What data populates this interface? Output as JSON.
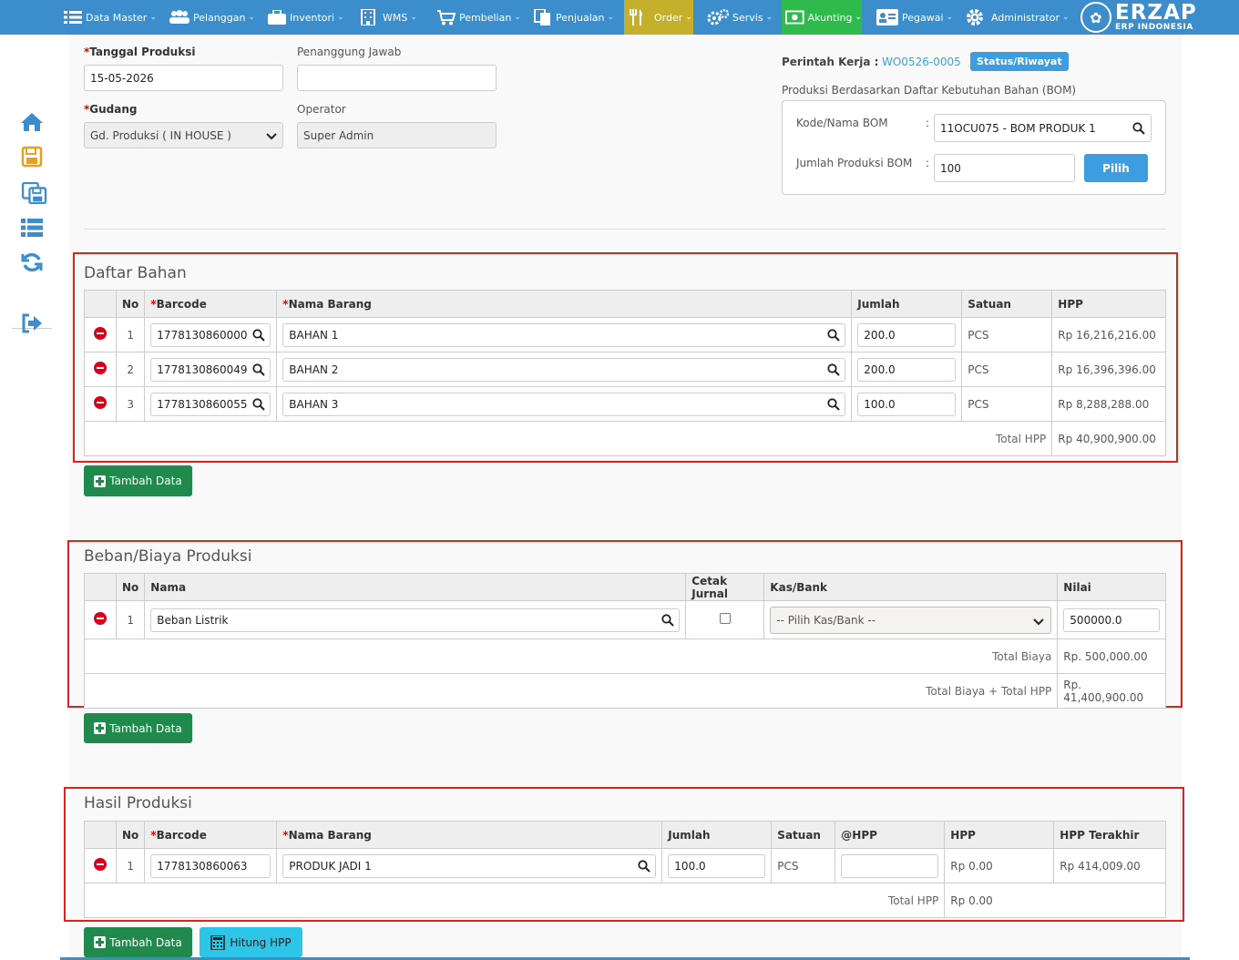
{
  "nav": {
    "items": [
      {
        "label": "Data Master",
        "icon": "list-icon"
      },
      {
        "label": "Pelanggan",
        "icon": "users-icon"
      },
      {
        "label": "Inventori",
        "icon": "briefcase-icon"
      },
      {
        "label": "WMS",
        "icon": "building-icon"
      },
      {
        "label": "Pembelian",
        "icon": "cart-icon"
      },
      {
        "label": "Penjualan",
        "icon": "document-icon"
      },
      {
        "label": "Order",
        "icon": "cutlery-icon"
      },
      {
        "label": "Servis",
        "icon": "gears-icon"
      },
      {
        "label": "Akunting",
        "icon": "money-icon"
      },
      {
        "label": "Pegawai",
        "icon": "id-card-icon"
      },
      {
        "label": "Administrator",
        "icon": "gear-icon"
      }
    ],
    "logo_main": "ERZAP",
    "logo_sub": "ERP INDONESIA"
  },
  "form": {
    "tanggal_label": "Tanggal Produksi",
    "tanggal_value": "15-05-2026",
    "penanggung_label": "Penanggung Jawab",
    "penanggung_value": "",
    "gudang_label": "Gudang",
    "gudang_value": "Gd. Produksi ( IN HOUSE )",
    "operator_label": "Operator",
    "operator_value": "Super Admin",
    "perintah_label": "Perintah Kerja :",
    "perintah_value": "WO0526-0005",
    "status_label": "Status/Riwayat",
    "bom_heading": "Produksi Berdasarkan Daftar Kebutuhan Bahan (BOM)",
    "bom_kode_label": "Kode/Nama BOM",
    "bom_kode_value": "11OCU075 - BOM PRODUK 1",
    "bom_jumlah_label": "Jumlah Produksi BOM",
    "bom_jumlah_value": "100",
    "colon": ":",
    "pilih_label": "Pilih"
  },
  "bahan": {
    "title": "Daftar Bahan",
    "headers": {
      "no": "No",
      "barcode": "Barcode",
      "nama": "Nama Barang",
      "jumlah": "Jumlah",
      "satuan": "Satuan",
      "hpp": "HPP"
    },
    "rows": [
      {
        "no": "1",
        "barcode": "1778130860000",
        "nama": "BAHAN 1",
        "jumlah": "200.0",
        "satuan": "PCS",
        "hpp": "Rp 16,216,216.00"
      },
      {
        "no": "2",
        "barcode": "1778130860049",
        "nama": "BAHAN 2",
        "jumlah": "200.0",
        "satuan": "PCS",
        "hpp": "Rp 16,396,396.00"
      },
      {
        "no": "3",
        "barcode": "1778130860055",
        "nama": "BAHAN 3",
        "jumlah": "100.0",
        "satuan": "PCS",
        "hpp": "Rp 8,288,288.00"
      }
    ],
    "total_label": "Total HPP",
    "total_value": "Rp 40,900,900.00",
    "add_label": "Tambah Data"
  },
  "beban": {
    "title": "Beban/Biaya Produksi",
    "headers": {
      "no": "No",
      "nama": "Nama",
      "cetak": "Cetak Jurnal",
      "kas": "Kas/Bank",
      "nilai": "Nilai"
    },
    "rows": [
      {
        "no": "1",
        "nama": "Beban Listrik",
        "kas": "-- Pilih Kas/Bank --",
        "nilai": "500000.0"
      }
    ],
    "total_biaya_label": "Total Biaya",
    "total_biaya_value": "Rp. 500,000.00",
    "total_all_label": "Total Biaya + Total HPP",
    "total_all_value": "Rp. 41,400,900.00",
    "add_label": "Tambah Data"
  },
  "hasil": {
    "title": "Hasil Produksi",
    "headers": {
      "no": "No",
      "barcode": "Barcode",
      "nama": "Nama Barang",
      "jumlah": "Jumlah",
      "satuan": "Satuan",
      "at_hpp": "@HPP",
      "hpp": "HPP",
      "hpp_terakhir": "HPP Terakhir"
    },
    "rows": [
      {
        "no": "1",
        "barcode": "1778130860063",
        "nama": "PRODUK JADI 1",
        "jumlah": "100.0",
        "satuan": "PCS",
        "at_hpp": "",
        "hpp": "Rp 0.00",
        "hpp_terakhir": "Rp 414,009.00"
      }
    ],
    "total_label": "Total HPP",
    "total_value": "Rp 0.00",
    "add_label": "Tambah Data",
    "hitung_label": "Hitung HPP"
  },
  "colors": {
    "nav": "#3c8dcb",
    "order": "#c4b02a",
    "akunting": "#2fbb4b",
    "accent": "#3c9ee0",
    "add": "#1f8a4c",
    "highlight": "#e02020"
  }
}
